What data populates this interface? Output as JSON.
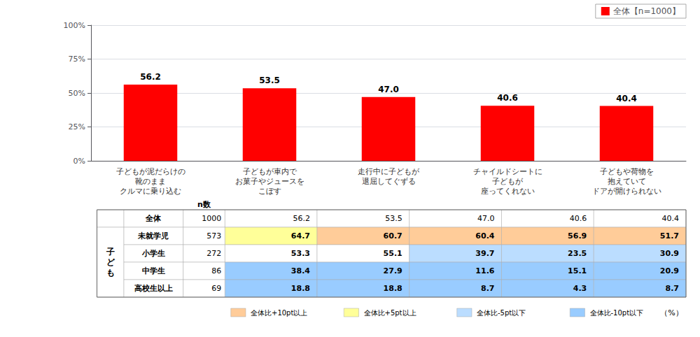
{
  "chart_data": {
    "type": "bar",
    "categories": [
      "子どもが泥だらけの\n靴のまま\nクルマに乗り込む",
      "子どもが車内で\nお菓子やジュースを\nこぼす",
      "走行中に子どもが\n退屈してぐずる",
      "チャイルドシートに\n子どもが\n座ってくれない",
      "子どもや荷物を\n抱えていて\nドアが開けられない"
    ],
    "series": [
      {
        "name": "全体【n=1000】",
        "color": "#FF0000",
        "values": [
          56.2,
          53.5,
          47.0,
          40.6,
          40.4
        ],
        "value_labels": [
          "56.2",
          "53.5",
          "47.0",
          "40.6",
          "40.4"
        ]
      }
    ],
    "ylim": [
      0,
      100
    ],
    "yticks": [
      {
        "value": 0,
        "label": "0%"
      },
      {
        "value": 25,
        "label": "25%"
      },
      {
        "value": 50,
        "label": "50%"
      },
      {
        "value": 75,
        "label": "75%"
      },
      {
        "value": 100,
        "label": "100%"
      }
    ],
    "grid": true,
    "legend": "upper right",
    "data_labels": true,
    "table": {
      "n_label": "n数",
      "group_label": "子\nど\nも",
      "row_labels": [
        "全体",
        "未就学児",
        "小学生",
        "中学生",
        "高校生以上"
      ],
      "n_values": [
        1000,
        573,
        272,
        86,
        69
      ],
      "values": [
        [
          56.2,
          53.5,
          47.0,
          40.6,
          40.4
        ],
        [
          64.7,
          60.7,
          60.4,
          56.9,
          51.7
        ],
        [
          53.3,
          55.1,
          39.7,
          23.5,
          30.9
        ],
        [
          38.4,
          27.9,
          11.6,
          15.1,
          20.9
        ],
        [
          18.8,
          18.8,
          8.7,
          4.3,
          8.7
        ]
      ],
      "value_labels": [
        [
          "56.2",
          "53.5",
          "47.0",
          "40.6",
          "40.4"
        ],
        [
          "64.7",
          "60.7",
          "60.4",
          "56.9",
          "51.7"
        ],
        [
          "53.3",
          "55.1",
          "39.7",
          "23.5",
          "30.9"
        ],
        [
          "38.4",
          "27.9",
          "11.6",
          "15.1",
          "20.9"
        ],
        [
          "18.8",
          "18.8",
          "8.7",
          "4.3",
          "8.7"
        ]
      ],
      "colors": [
        [
          "#FFFFFF",
          "#FFFFFF",
          "#FFFFFF",
          "#FFFFFF",
          "#FFFFFF"
        ],
        [
          "#FFFF99",
          "#FFCC99",
          "#FFCC99",
          "#FFCC99",
          "#FFCC99"
        ],
        [
          "#FFFFFF",
          "#FFFFFF",
          "#BBDDFF",
          "#BBDDFF",
          "#BBDDFF"
        ],
        [
          "#99CCFF",
          "#99CCFF",
          "#99CCFF",
          "#99CCFF",
          "#99CCFF"
        ],
        [
          "#99CCFF",
          "#99CCFF",
          "#99CCFF",
          "#99CCFF",
          "#99CCFF"
        ]
      ],
      "legend_items": [
        {
          "label": "全体比+10pt以上",
          "color": "#FFCC99"
        },
        {
          "label": "全体比+5pt以上",
          "color": "#FFFF99"
        },
        {
          "label": "全体比-5pt以下",
          "color": "#BBDDFF"
        },
        {
          "label": "全体比-10pt以下",
          "color": "#99CCFF"
        }
      ],
      "unit_label": "（%）"
    }
  }
}
